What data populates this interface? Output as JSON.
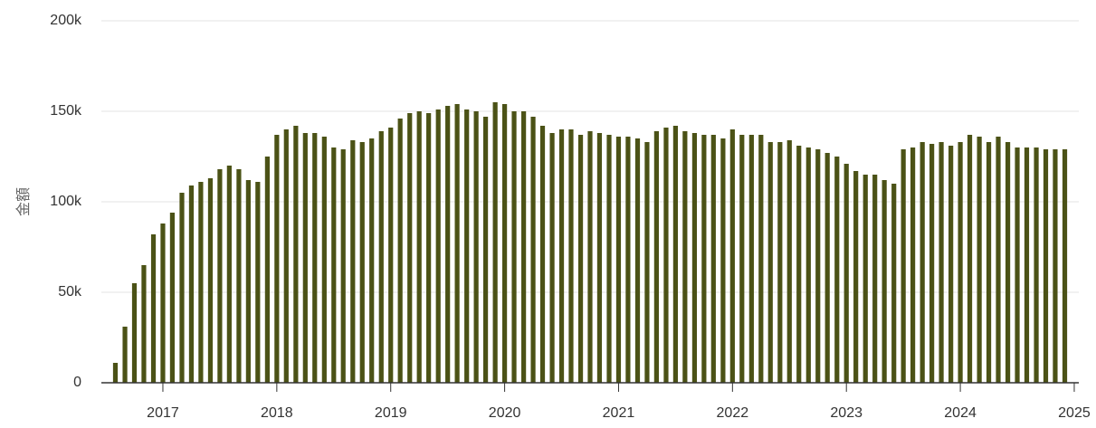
{
  "chart_data": {
    "type": "bar",
    "y_label": "金額",
    "color": "#4b5216",
    "x": [
      2016.583,
      2016.667,
      2016.75,
      2016.833,
      2016.917,
      2017,
      2017.083,
      2017.167,
      2017.25,
      2017.333,
      2017.417,
      2017.5,
      2017.583,
      2017.667,
      2017.75,
      2017.833,
      2017.917,
      2018,
      2018.083,
      2018.167,
      2018.25,
      2018.333,
      2018.417,
      2018.5,
      2018.583,
      2018.667,
      2018.75,
      2018.833,
      2018.917,
      2019,
      2019.083,
      2019.167,
      2019.25,
      2019.333,
      2019.417,
      2019.5,
      2019.583,
      2019.667,
      2019.75,
      2019.833,
      2019.917,
      2020,
      2020.083,
      2020.167,
      2020.25,
      2020.333,
      2020.417,
      2020.5,
      2020.583,
      2020.667,
      2020.75,
      2020.833,
      2020.917,
      2021,
      2021.083,
      2021.167,
      2021.25,
      2021.333,
      2021.417,
      2021.5,
      2021.583,
      2021.667,
      2021.75,
      2021.833,
      2021.917,
      2022,
      2022.083,
      2022.167,
      2022.25,
      2022.333,
      2022.417,
      2022.5,
      2022.583,
      2022.667,
      2022.75,
      2022.833,
      2022.917,
      2023,
      2023.083,
      2023.167,
      2023.25,
      2023.333,
      2023.417,
      2023.5,
      2023.583,
      2023.667,
      2023.75,
      2023.833,
      2023.917,
      2024,
      2024.083,
      2024.167,
      2024.25,
      2024.333,
      2024.417,
      2024.5,
      2024.583,
      2024.667,
      2024.75,
      2024.833,
      2024.917
    ],
    "values": [
      11000,
      31000,
      55000,
      65000,
      82000,
      88000,
      94000,
      105000,
      109000,
      111000,
      113000,
      118000,
      120000,
      118000,
      112000,
      111000,
      125000,
      137000,
      140000,
      142000,
      138000,
      138000,
      136000,
      130000,
      129000,
      134000,
      133000,
      135000,
      139000,
      141000,
      146000,
      149000,
      150000,
      149000,
      151000,
      153000,
      154000,
      151000,
      150000,
      147000,
      155000,
      154000,
      150000,
      150000,
      147000,
      142000,
      138000,
      140000,
      140000,
      137000,
      139000,
      138000,
      137000,
      136000,
      136000,
      135000,
      133000,
      139000,
      141000,
      142000,
      139000,
      138000,
      137000,
      137000,
      135000,
      140000,
      137000,
      137000,
      137000,
      133000,
      133000,
      134000,
      131000,
      130000,
      129000,
      127000,
      125000,
      121000,
      117000,
      115000,
      115000,
      112000,
      110000,
      129000,
      130000,
      133000,
      132000,
      133000,
      131000,
      133000,
      137000,
      136000,
      133000,
      136000,
      133000,
      130000,
      130000,
      130000,
      129000,
      129000,
      129000
    ],
    "xlim": [
      2016.46,
      2025.04
    ],
    "xticks": [
      2017,
      2018,
      2019,
      2020,
      2021,
      2022,
      2023,
      2024,
      2025
    ],
    "ylim": [
      0,
      200000
    ],
    "yticks": [
      0,
      {
        "value": 50000,
        "label": "50k"
      },
      {
        "value": 100000,
        "label": "100k"
      },
      {
        "value": 150000,
        "label": "150k"
      },
      {
        "value": 200000,
        "label": "200k"
      }
    ],
    "grid": true
  }
}
